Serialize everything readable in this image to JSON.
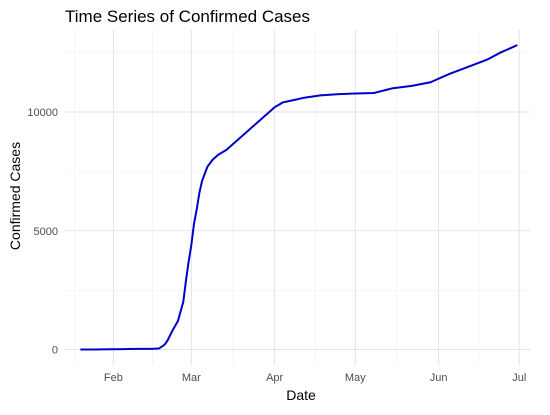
{
  "chart_data": {
    "type": "line",
    "title": "Time Series of Confirmed Cases",
    "xlabel": "Date",
    "ylabel": "Confirmed Cases",
    "xlim": [
      "2020-01-14",
      "2020-07-05"
    ],
    "ylim": [
      -650,
      13450
    ],
    "x_ticks": [
      {
        "label": "Feb",
        "date": "2020-02-01"
      },
      {
        "label": "Mar",
        "date": "2020-03-01"
      },
      {
        "label": "Apr",
        "date": "2020-04-01"
      },
      {
        "label": "May",
        "date": "2020-05-01"
      },
      {
        "label": "Jun",
        "date": "2020-06-01"
      },
      {
        "label": "Jul",
        "date": "2020-07-01"
      }
    ],
    "y_ticks": [
      0,
      5000,
      10000
    ],
    "y_tick_labels": [
      "0",
      "5000",
      "10000"
    ],
    "grid": true,
    "line_color": "#0000cc",
    "series": [
      {
        "x": [
          "2020-01-20",
          "2020-01-25",
          "2020-01-31",
          "2020-02-05",
          "2020-02-10",
          "2020-02-15",
          "2020-02-18",
          "2020-02-20",
          "2020-02-21",
          "2020-02-23",
          "2020-02-25",
          "2020-02-27",
          "2020-02-28",
          "2020-02-29",
          "2020-03-01",
          "2020-03-02",
          "2020-03-03",
          "2020-03-04",
          "2020-03-05",
          "2020-03-06",
          "2020-03-07",
          "2020-03-09",
          "2020-03-11",
          "2020-03-14",
          "2020-03-17",
          "2020-03-20",
          "2020-03-23",
          "2020-03-26",
          "2020-03-29",
          "2020-04-01",
          "2020-04-04",
          "2020-04-08",
          "2020-04-12",
          "2020-04-18",
          "2020-04-25",
          "2020-05-01",
          "2020-05-08",
          "2020-05-15",
          "2020-05-22",
          "2020-05-29",
          "2020-06-05",
          "2020-06-12",
          "2020-06-19",
          "2020-06-24",
          "2020-06-30"
        ],
        "y": [
          1,
          3,
          11,
          20,
          28,
          30,
          46,
          200,
          350,
          800,
          1200,
          2000,
          2900,
          3700,
          4400,
          5300,
          5900,
          6600,
          7100,
          7400,
          7700,
          8000,
          8200,
          8400,
          8700,
          9000,
          9300,
          9600,
          9900,
          10200,
          10400,
          10500,
          10600,
          10700,
          10750,
          10780,
          10800,
          11000,
          11100,
          11250,
          11600,
          11900,
          12200,
          12500,
          12800
        ]
      }
    ]
  }
}
